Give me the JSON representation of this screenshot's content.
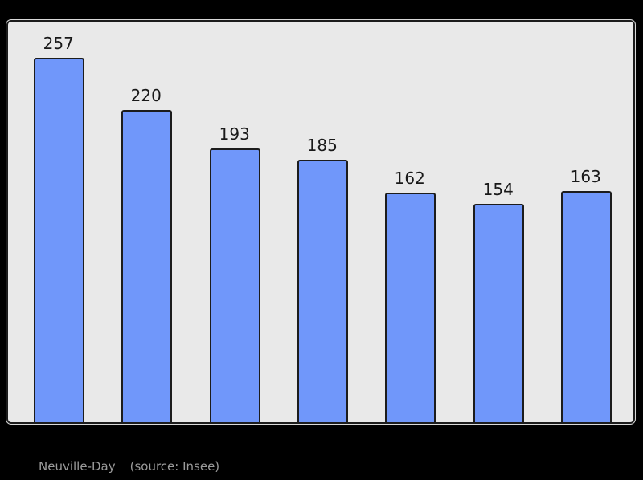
{
  "chart_data": {
    "type": "bar",
    "values": [
      257,
      220,
      193,
      185,
      162,
      154,
      163
    ],
    "data_labels": [
      "257",
      "220",
      "193",
      "185",
      "162",
      "154",
      "163"
    ],
    "title": "",
    "xlabel": "",
    "ylabel": "",
    "ylim": [
      0,
      285
    ],
    "grid": false,
    "legend": false,
    "orientation": "vertical",
    "bar_count": 7
  },
  "caption": {
    "name": "Neuville-Day",
    "source": "(source: Insee)"
  },
  "colors": {
    "page_bg": "#000000",
    "panel_bg": "#e9e9e9",
    "panel_border": "#1c1c1c",
    "bar_fill": "#7097fa",
    "bar_border": "#1c1c1c",
    "label_color": "#191919",
    "caption_color": "#9a9a9a"
  }
}
